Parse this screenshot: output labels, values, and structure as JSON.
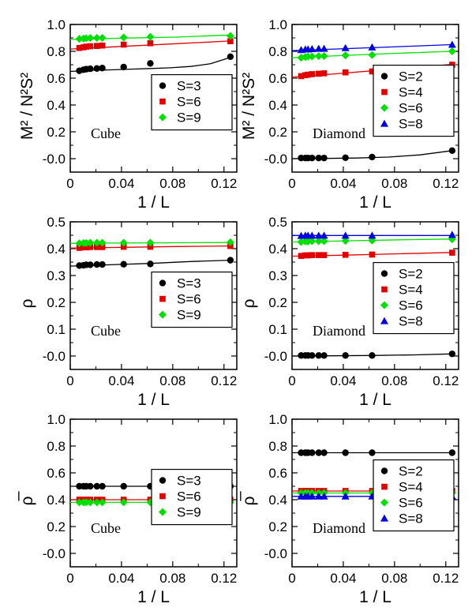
{
  "colors": {
    "S=2": "#000000",
    "S=3": "#000000",
    "S=4": "#e00000",
    "S=6_cube": "#e00000",
    "S=6_diamond": "#00e000",
    "S=8": "#0000e0",
    "S=9": "#00e000"
  },
  "chart_data": [
    {
      "id": "p1",
      "type": "scatter",
      "label": "Cube",
      "xlabel": "1 / L",
      "ylabel": "M² / N²S²",
      "xlim": [
        0,
        0.13
      ],
      "ylim": [
        -0.1,
        1.0
      ],
      "xticks": [
        "0",
        "0.04",
        "0.08",
        "0.12"
      ],
      "yticks": [
        "-0.0",
        "0.2",
        "0.4",
        "0.6",
        "0.8",
        "1.0"
      ],
      "legend_position": "right-middle",
      "series": [
        {
          "name": "S=3",
          "marker": "circle",
          "color": "#000000",
          "x": [
            0.0071,
            0.0104,
            0.0125,
            0.0156,
            0.0208,
            0.025,
            0.0417,
            0.0625,
            0.125
          ],
          "y": [
            0.655,
            0.663,
            0.667,
            0.67,
            0.672,
            0.675,
            0.683,
            0.71,
            0.76
          ],
          "fit": [
            0.65,
            0.658,
            0.662,
            0.667,
            0.672,
            0.677,
            0.687,
            0.707,
            0.755
          ]
        },
        {
          "name": "S=6",
          "marker": "square",
          "color": "#e00000",
          "x": [
            0.0071,
            0.0104,
            0.0125,
            0.0156,
            0.0208,
            0.025,
            0.0417,
            0.0625,
            0.125
          ],
          "y": [
            0.825,
            0.83,
            0.835,
            0.838,
            0.84,
            0.843,
            0.85,
            0.86,
            0.875
          ],
          "fit": [
            0.817,
            0.837,
            0.857,
            0.877
          ]
        },
        {
          "name": "S=9",
          "marker": "diamond",
          "color": "#00e000",
          "x": [
            0.0071,
            0.0104,
            0.0125,
            0.0156,
            0.0208,
            0.025,
            0.0417,
            0.0625,
            0.125
          ],
          "y": [
            0.893,
            0.895,
            0.897,
            0.899,
            0.9,
            0.9,
            0.903,
            0.907,
            0.915
          ],
          "fit": [
            0.888,
            0.898,
            0.906,
            0.922
          ]
        }
      ]
    },
    {
      "id": "p2",
      "type": "scatter",
      "label": "Diamond",
      "xlabel": "1 / L",
      "ylabel": "M² / N²S²",
      "xlim": [
        0,
        0.13
      ],
      "ylim": [
        -0.1,
        1.0
      ],
      "xticks": [
        "0",
        "0.04",
        "0.08",
        "0.12"
      ],
      "yticks": [
        "-0.0",
        "0.2",
        "0.4",
        "0.6",
        "0.8",
        "1.0"
      ],
      "legend_position": "right-middle",
      "series": [
        {
          "name": "S=2",
          "marker": "circle",
          "color": "#000000",
          "x": [
            0.0071,
            0.0104,
            0.0125,
            0.0156,
            0.0208,
            0.025,
            0.0417,
            0.0625,
            0.125
          ],
          "y": [
            0.005,
            0.005,
            0.005,
            0.005,
            0.005,
            0.005,
            0.007,
            0.012,
            0.06
          ],
          "fit": [
            0.0,
            0.002,
            0.005,
            0.012,
            0.028,
            0.06
          ]
        },
        {
          "name": "S=4",
          "marker": "square",
          "color": "#e00000",
          "x": [
            0.0071,
            0.0104,
            0.0125,
            0.0156,
            0.0208,
            0.025,
            0.0417,
            0.0625,
            0.125
          ],
          "y": [
            0.615,
            0.622,
            0.626,
            0.63,
            0.633,
            0.636,
            0.643,
            0.65,
            0.7
          ],
          "fit": [
            0.608,
            0.63,
            0.655,
            0.682,
            0.702
          ]
        },
        {
          "name": "S=6",
          "marker": "diamond",
          "color": "#00e000",
          "x": [
            0.0071,
            0.0104,
            0.0125,
            0.0156,
            0.0208,
            0.025,
            0.0417,
            0.0625,
            0.125
          ],
          "y": [
            0.752,
            0.757,
            0.76,
            0.762,
            0.764,
            0.765,
            0.77,
            0.773,
            0.8
          ],
          "fit": [
            0.752,
            0.77,
            0.786,
            0.8
          ]
        },
        {
          "name": "S=8",
          "marker": "triangle",
          "color": "#0000e0",
          "x": [
            0.0071,
            0.0104,
            0.0125,
            0.0156,
            0.0208,
            0.025,
            0.0417,
            0.0625,
            0.125
          ],
          "y": [
            0.81,
            0.815,
            0.815,
            0.818,
            0.82,
            0.82,
            0.825,
            0.83,
            0.85
          ],
          "fit": [
            0.805,
            0.82,
            0.835,
            0.85
          ]
        }
      ]
    },
    {
      "id": "p3",
      "type": "scatter",
      "label": "Cube",
      "xlabel": "1 / L",
      "ylabel": "ρ",
      "xlim": [
        0,
        0.13
      ],
      "ylim": [
        -0.05,
        0.5
      ],
      "xticks": [
        "0",
        "0.04",
        "0.08",
        "0.12"
      ],
      "yticks": [
        "-0.0",
        "0.1",
        "0.2",
        "0.3",
        "0.4",
        "0.5"
      ],
      "legend_position": "right-middle",
      "series": [
        {
          "name": "S=3",
          "marker": "circle",
          "color": "#000000",
          "x": [
            0.0071,
            0.0104,
            0.0125,
            0.0156,
            0.0208,
            0.025,
            0.0417,
            0.0625,
            0.125
          ],
          "y": [
            0.337,
            0.338,
            0.34,
            0.34,
            0.341,
            0.341,
            0.342,
            0.343,
            0.357
          ],
          "fit": [
            0.335,
            0.34,
            0.345,
            0.352,
            0.357
          ]
        },
        {
          "name": "S=6",
          "marker": "square",
          "color": "#e00000",
          "x": [
            0.0071,
            0.0104,
            0.0125,
            0.0156,
            0.0208,
            0.025,
            0.0417,
            0.0625,
            0.125
          ],
          "y": [
            0.403,
            0.405,
            0.405,
            0.406,
            0.406,
            0.406,
            0.407,
            0.407,
            0.41
          ],
          "fit": [
            0.402,
            0.405,
            0.408,
            0.41
          ]
        },
        {
          "name": "S=9",
          "marker": "diamond",
          "color": "#00e000",
          "x": [
            0.0071,
            0.0104,
            0.0125,
            0.0156,
            0.0208,
            0.025,
            0.0417,
            0.0625,
            0.125
          ],
          "y": [
            0.42,
            0.421,
            0.421,
            0.422,
            0.422,
            0.422,
            0.422,
            0.422,
            0.424
          ],
          "fit": [
            0.42,
            0.421,
            0.422,
            0.423
          ]
        }
      ]
    },
    {
      "id": "p4",
      "type": "scatter",
      "label": "Diamond",
      "xlabel": "1 / L",
      "ylabel": "ρ",
      "xlim": [
        0,
        0.13
      ],
      "ylim": [
        -0.05,
        0.5
      ],
      "xticks": [
        "0",
        "0.04",
        "0.08",
        "0.12"
      ],
      "yticks": [
        "-0.0",
        "0.1",
        "0.2",
        "0.3",
        "0.4",
        "0.5"
      ],
      "legend_position": "right-middle",
      "series": [
        {
          "name": "S=2",
          "marker": "circle",
          "color": "#000000",
          "x": [
            0.0071,
            0.0104,
            0.0125,
            0.0156,
            0.0208,
            0.025,
            0.0417,
            0.0625,
            0.125
          ],
          "y": [
            0.002,
            0.002,
            0.002,
            0.002,
            0.002,
            0.002,
            0.002,
            0.002,
            0.008
          ],
          "fit": [
            0.0,
            0.001,
            0.002,
            0.004,
            0.008
          ]
        },
        {
          "name": "S=4",
          "marker": "square",
          "color": "#e00000",
          "x": [
            0.0071,
            0.0104,
            0.0125,
            0.0156,
            0.0208,
            0.025,
            0.0417,
            0.0625,
            0.125
          ],
          "y": [
            0.373,
            0.375,
            0.375,
            0.376,
            0.376,
            0.376,
            0.377,
            0.378,
            0.385
          ],
          "fit": [
            0.372,
            0.376,
            0.381,
            0.386
          ]
        },
        {
          "name": "S=6",
          "marker": "diamond",
          "color": "#00e000",
          "x": [
            0.0071,
            0.0104,
            0.0125,
            0.0156,
            0.0208,
            0.025,
            0.0417,
            0.0625,
            0.125
          ],
          "y": [
            0.425,
            0.427,
            0.427,
            0.428,
            0.428,
            0.428,
            0.429,
            0.43,
            0.435
          ],
          "fit": [
            0.425,
            0.429,
            0.433,
            0.436
          ]
        },
        {
          "name": "S=8",
          "marker": "triangle",
          "color": "#0000e0",
          "x": [
            0.0071,
            0.0104,
            0.0125,
            0.0156,
            0.0208,
            0.025,
            0.0417,
            0.0625,
            0.125
          ],
          "y": [
            0.448,
            0.449,
            0.449,
            0.449,
            0.449,
            0.449,
            0.449,
            0.449,
            0.452
          ],
          "fit": [
            0.449,
            0.449,
            0.449,
            0.449
          ]
        }
      ]
    },
    {
      "id": "p5",
      "type": "scatter",
      "label": "Cube",
      "xlabel": "1 / L",
      "ylabel": "ρ̅",
      "xlim": [
        0,
        0.13
      ],
      "ylim": [
        -0.1,
        1.0
      ],
      "xticks": [
        "0",
        "0.04",
        "0.08",
        "0.12"
      ],
      "yticks": [
        "-0.0",
        "0.2",
        "0.4",
        "0.6",
        "0.8",
        "1.0"
      ],
      "legend_position": "right-middle",
      "series": [
        {
          "name": "S=3",
          "marker": "circle",
          "color": "#000000",
          "x": [
            0.0071,
            0.0104,
            0.0125,
            0.0156,
            0.0208,
            0.025,
            0.0417,
            0.0625,
            0.125
          ],
          "y": [
            0.5,
            0.5,
            0.5,
            0.5,
            0.5,
            0.5,
            0.5,
            0.5,
            0.5
          ],
          "fit": [
            0.5,
            0.5
          ]
        },
        {
          "name": "S=6",
          "marker": "square",
          "color": "#e00000",
          "x": [
            0.0071,
            0.0104,
            0.0125,
            0.0156,
            0.0208,
            0.025,
            0.0417,
            0.0625,
            0.125
          ],
          "y": [
            0.4,
            0.4,
            0.4,
            0.4,
            0.4,
            0.4,
            0.4,
            0.4,
            0.4
          ],
          "fit": [
            0.4,
            0.4
          ]
        },
        {
          "name": "S=9",
          "marker": "diamond",
          "color": "#00e000",
          "x": [
            0.0071,
            0.0104,
            0.0125,
            0.0156,
            0.0208,
            0.025,
            0.0417,
            0.0625,
            0.125
          ],
          "y": [
            0.38,
            0.38,
            0.38,
            0.38,
            0.38,
            0.38,
            0.38,
            0.38,
            0.38
          ],
          "fit": [
            0.38,
            0.38
          ]
        }
      ]
    },
    {
      "id": "p6",
      "type": "scatter",
      "label": "Diamond",
      "xlabel": "1 / L",
      "ylabel": "ρ̅",
      "xlim": [
        0,
        0.13
      ],
      "ylim": [
        -0.1,
        1.0
      ],
      "xticks": [
        "0",
        "0.04",
        "0.08",
        "0.12"
      ],
      "yticks": [
        "-0.0",
        "0.2",
        "0.4",
        "0.6",
        "0.8",
        "1.0"
      ],
      "legend_position": "right-middle",
      "series": [
        {
          "name": "S=2",
          "marker": "circle",
          "color": "#000000",
          "x": [
            0.0071,
            0.0104,
            0.0125,
            0.0156,
            0.0208,
            0.025,
            0.0417,
            0.0625,
            0.125
          ],
          "y": [
            0.75,
            0.75,
            0.75,
            0.75,
            0.75,
            0.75,
            0.75,
            0.75,
            0.75
          ],
          "fit": [
            0.75,
            0.75
          ]
        },
        {
          "name": "S=4",
          "marker": "square",
          "color": "#e00000",
          "x": [
            0.0071,
            0.0104,
            0.0125,
            0.0156,
            0.0208,
            0.025,
            0.0417,
            0.0625,
            0.125
          ],
          "y": [
            0.465,
            0.465,
            0.465,
            0.465,
            0.465,
            0.465,
            0.465,
            0.465,
            0.465
          ],
          "fit": [
            0.465,
            0.465
          ]
        },
        {
          "name": "S=6",
          "marker": "diamond",
          "color": "#00e000",
          "x": [
            0.0071,
            0.0104,
            0.0125,
            0.0156,
            0.0208,
            0.025,
            0.0417,
            0.0625,
            0.125
          ],
          "y": [
            0.45,
            0.45,
            0.45,
            0.45,
            0.45,
            0.45,
            0.45,
            0.45,
            0.45
          ],
          "fit": [
            0.45,
            0.45
          ]
        },
        {
          "name": "S=8",
          "marker": "triangle",
          "color": "#0000e0",
          "x": [
            0.0071,
            0.0104,
            0.0125,
            0.0156,
            0.0208,
            0.025,
            0.0417,
            0.0625,
            0.125
          ],
          "y": [
            0.425,
            0.425,
            0.425,
            0.425,
            0.425,
            0.425,
            0.425,
            0.425,
            0.425
          ],
          "fit": [
            0.425,
            0.425
          ]
        }
      ]
    }
  ]
}
